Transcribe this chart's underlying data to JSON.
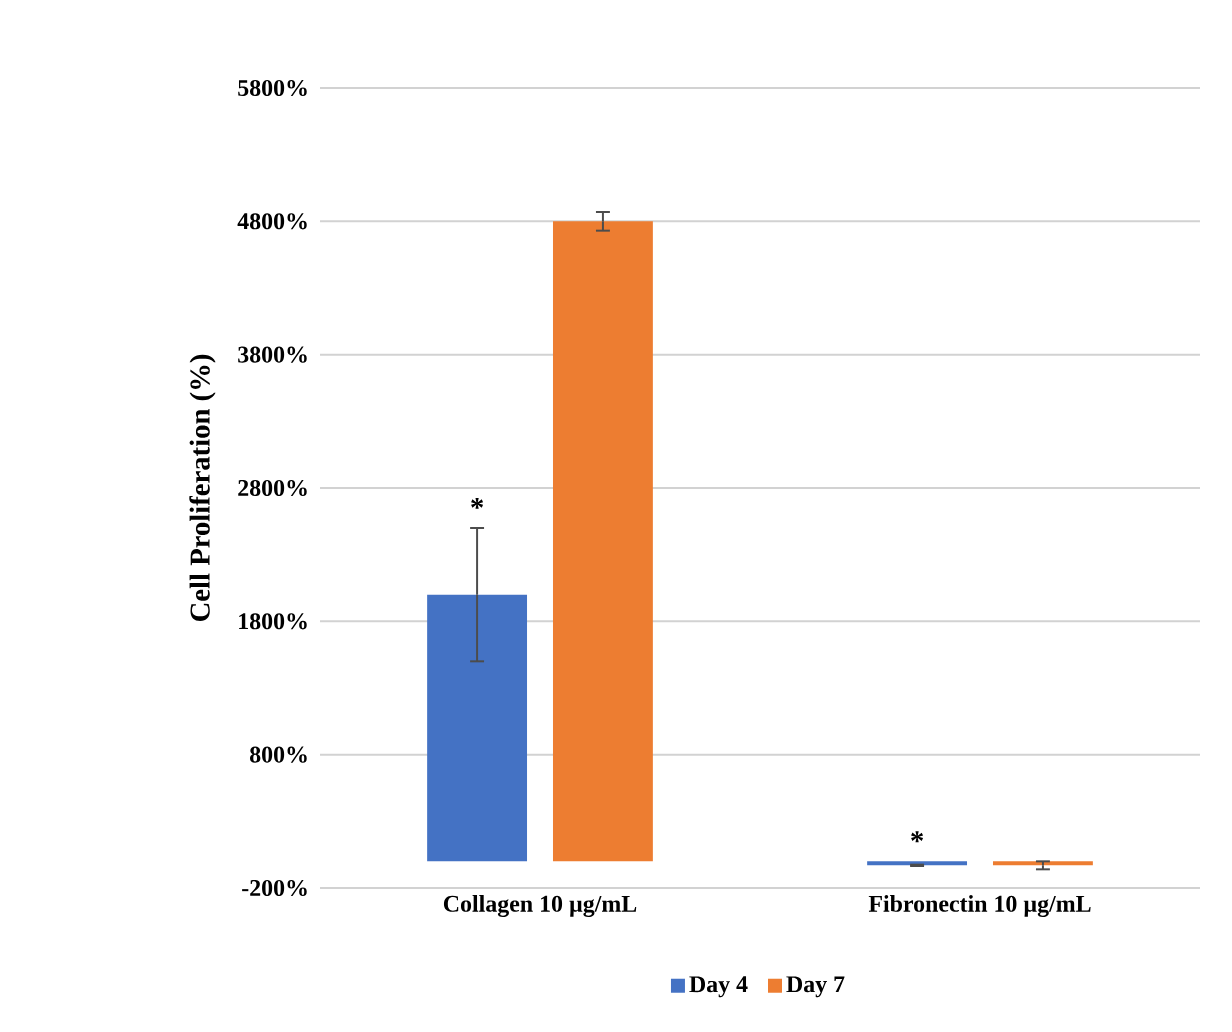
{
  "chart_data": {
    "type": "bar",
    "ylabel": "Cell Proliferation (%)",
    "categories": [
      "Collagen 10 µg/mL",
      "Fibronectin 10  µg/mL"
    ],
    "series": [
      {
        "name": "Day 4",
        "color": "#4472c4",
        "values": [
          2000,
          -30
        ],
        "errors": [
          500,
          5
        ]
      },
      {
        "name": "Day 7",
        "color": "#ed7d31",
        "values": [
          4800,
          -30
        ],
        "errors": [
          70,
          30
        ]
      }
    ],
    "ylim": [
      -200,
      5800
    ],
    "yticks": [
      {
        "value": -200,
        "label": "-200%"
      },
      {
        "value": 800,
        "label": "800%"
      },
      {
        "value": 1800,
        "label": "1800%"
      },
      {
        "value": 2800,
        "label": "2800%"
      },
      {
        "value": 3800,
        "label": "3800%"
      },
      {
        "value": 4800,
        "label": "4800%"
      },
      {
        "value": 5800,
        "label": "5800%"
      }
    ],
    "grid": "y",
    "legend": "bottom",
    "annotations": [
      "*",
      "*"
    ]
  }
}
